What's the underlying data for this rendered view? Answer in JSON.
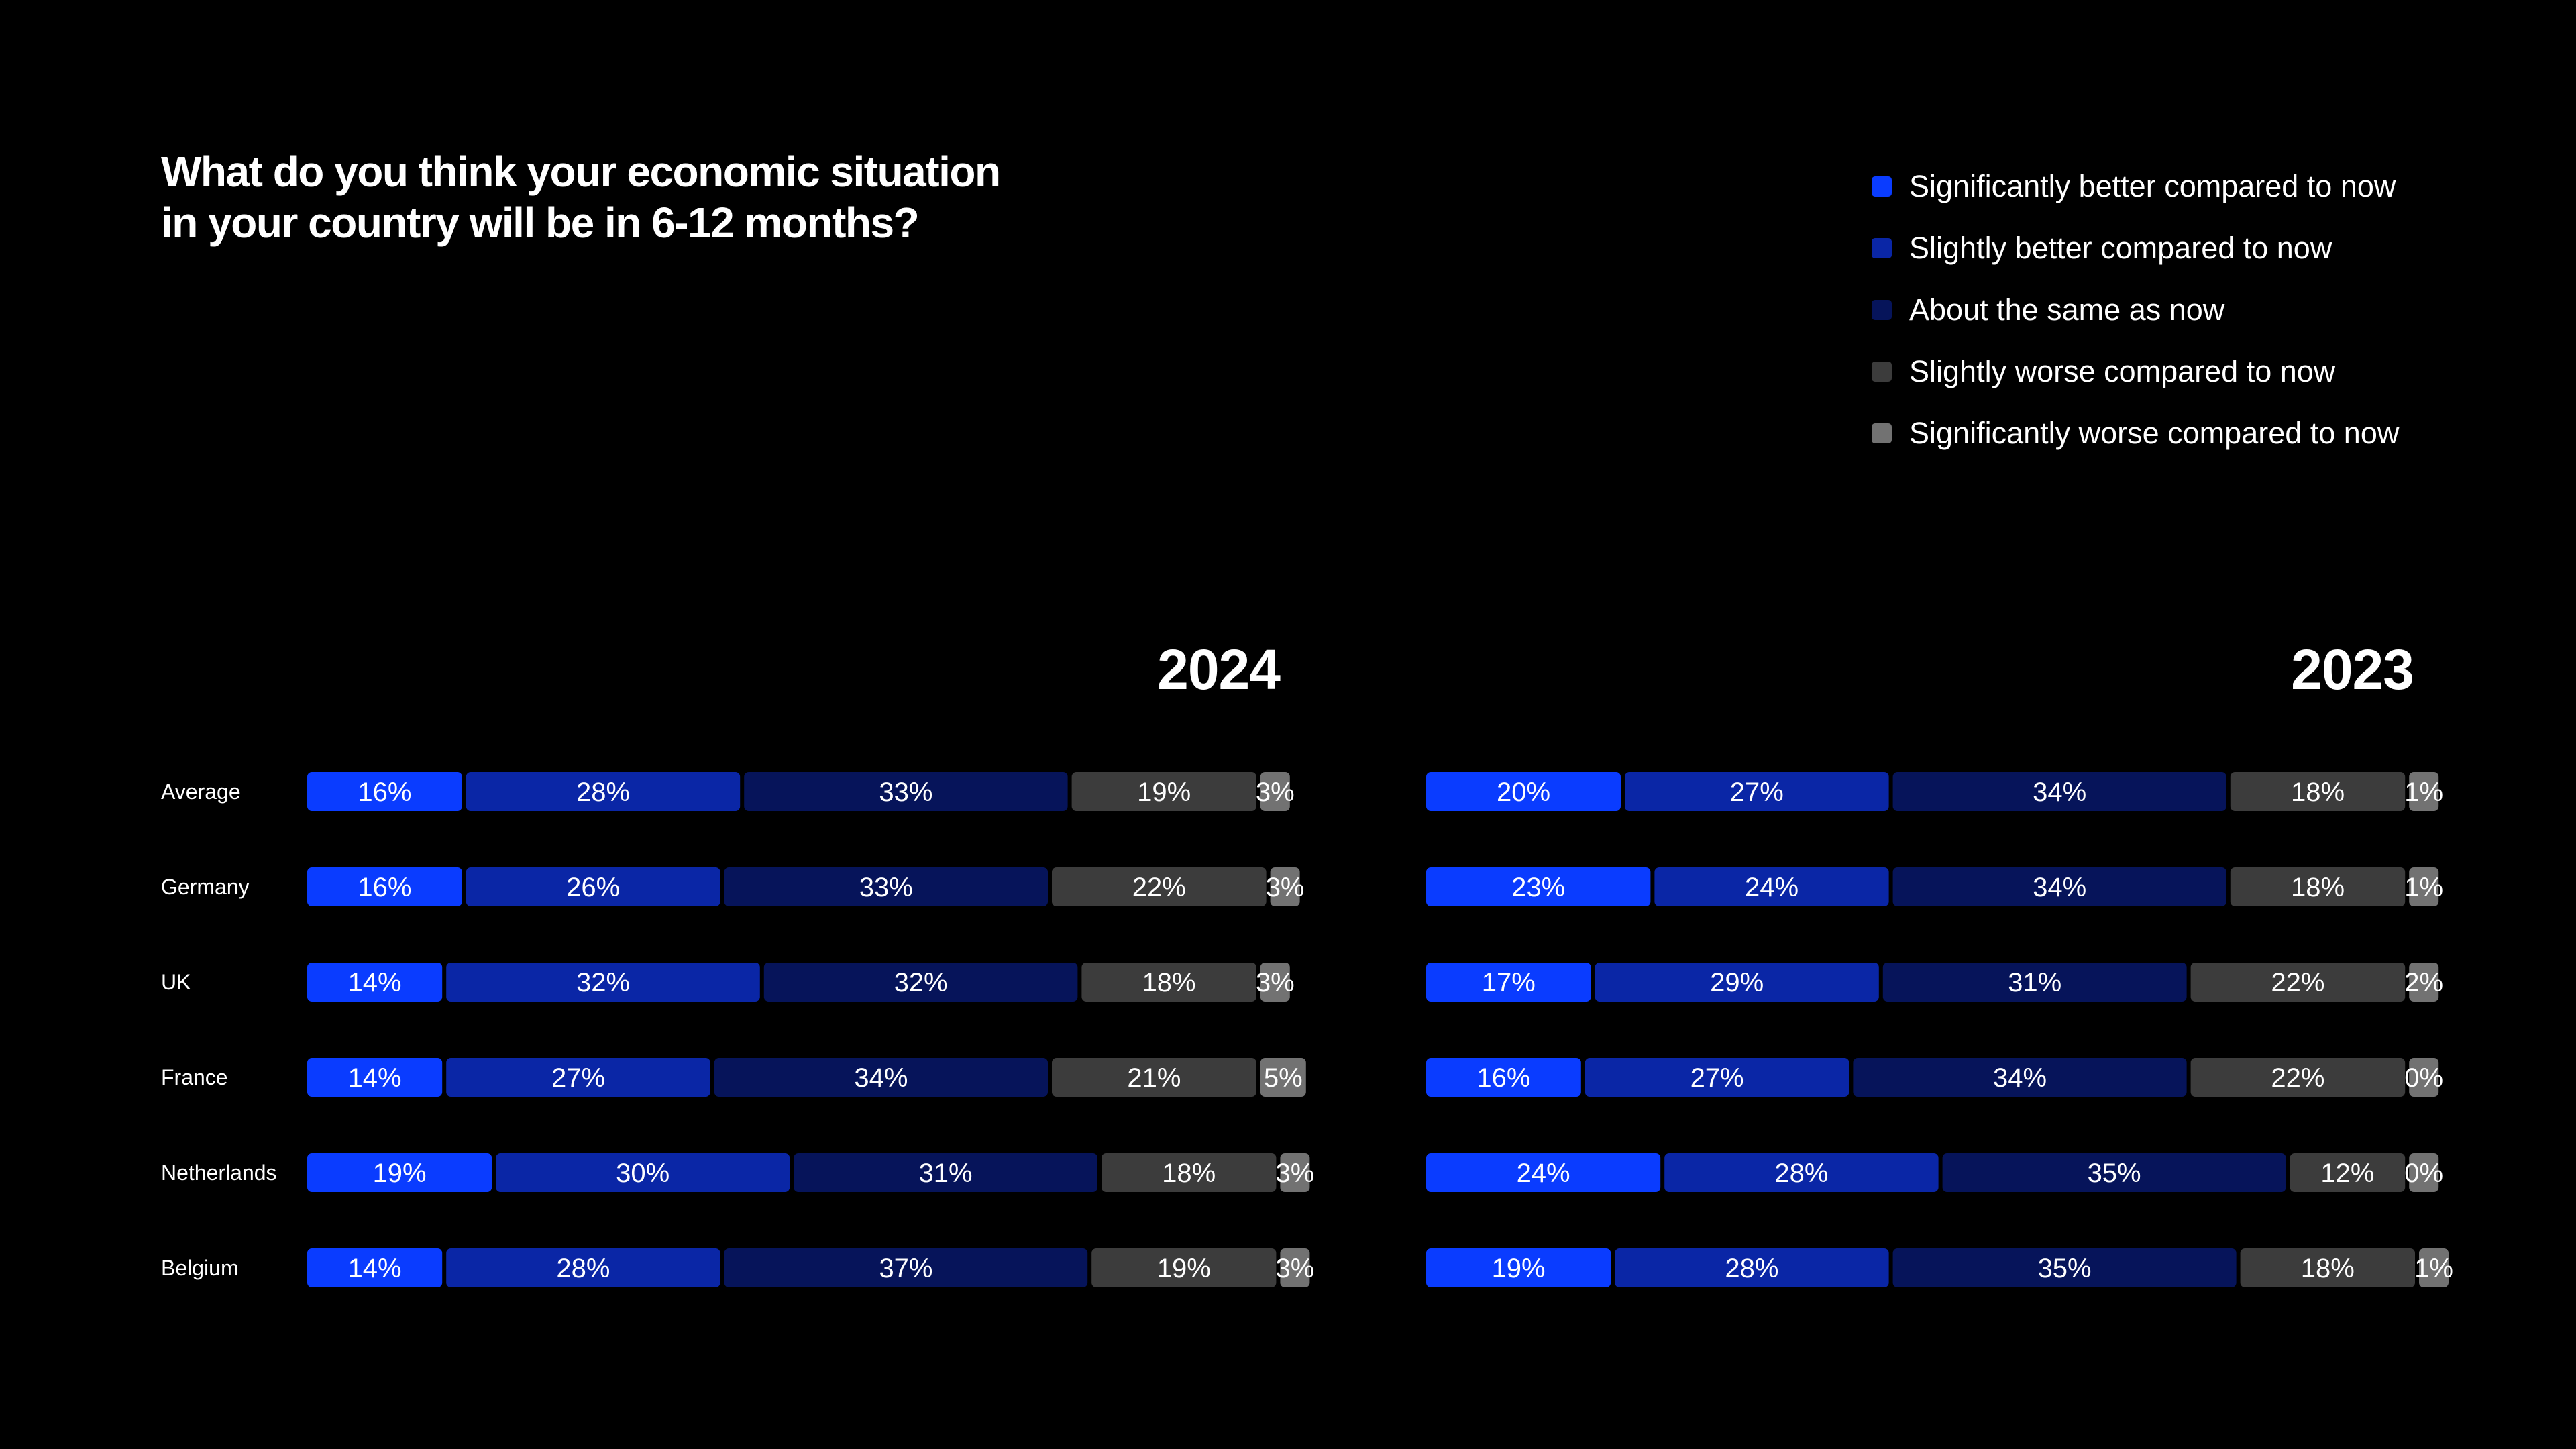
{
  "title": {
    "line1": "What do you think your economic situation",
    "line2": "in your country will be in 6-12 months?"
  },
  "legend": [
    {
      "label": "Significantly better compared to now",
      "color": "#0a3cff"
    },
    {
      "label": "Slightly better compared to now",
      "color": "#0a26a6"
    },
    {
      "label": "About the same as now",
      "color": "#06145a"
    },
    {
      "label": "Slightly worse compared to now",
      "color": "#3c3c3c"
    },
    {
      "label": "Significantly worse compared to now",
      "color": "#727272"
    }
  ],
  "chart_data": [
    {
      "type": "bar",
      "stacked": true,
      "orientation": "horizontal",
      "title": "2024",
      "categories": [
        "Average",
        "Germany",
        "UK",
        "France",
        "Netherlands",
        "Belgium"
      ],
      "series": [
        {
          "name": "Significantly better compared to now",
          "values": [
            16,
            16,
            14,
            14,
            19,
            14
          ]
        },
        {
          "name": "Slightly better compared to now",
          "values": [
            28,
            26,
            32,
            27,
            30,
            28
          ]
        },
        {
          "name": "About the same as now",
          "values": [
            33,
            33,
            32,
            34,
            31,
            37
          ]
        },
        {
          "name": "Slightly worse compared to now",
          "values": [
            19,
            22,
            18,
            21,
            18,
            19
          ]
        },
        {
          "name": "Significantly worse compared to now",
          "values": [
            3,
            3,
            3,
            5,
            3,
            3
          ]
        }
      ],
      "unit": "%"
    },
    {
      "type": "bar",
      "stacked": true,
      "orientation": "horizontal",
      "title": "2023",
      "categories": [
        "Average",
        "Germany",
        "UK",
        "France",
        "Netherlands",
        "Belgium"
      ],
      "series": [
        {
          "name": "Significantly better compared to now",
          "values": [
            20,
            23,
            17,
            16,
            24,
            19
          ]
        },
        {
          "name": "Slightly better compared to now",
          "values": [
            27,
            24,
            29,
            27,
            28,
            28
          ]
        },
        {
          "name": "About the same as now",
          "values": [
            34,
            34,
            31,
            34,
            35,
            35
          ]
        },
        {
          "name": "Slightly worse compared to now",
          "values": [
            18,
            18,
            22,
            22,
            12,
            18
          ]
        },
        {
          "name": "Significantly worse compared to now",
          "values": [
            1,
            1,
            2,
            0,
            0,
            1
          ]
        }
      ],
      "unit": "%"
    }
  ]
}
